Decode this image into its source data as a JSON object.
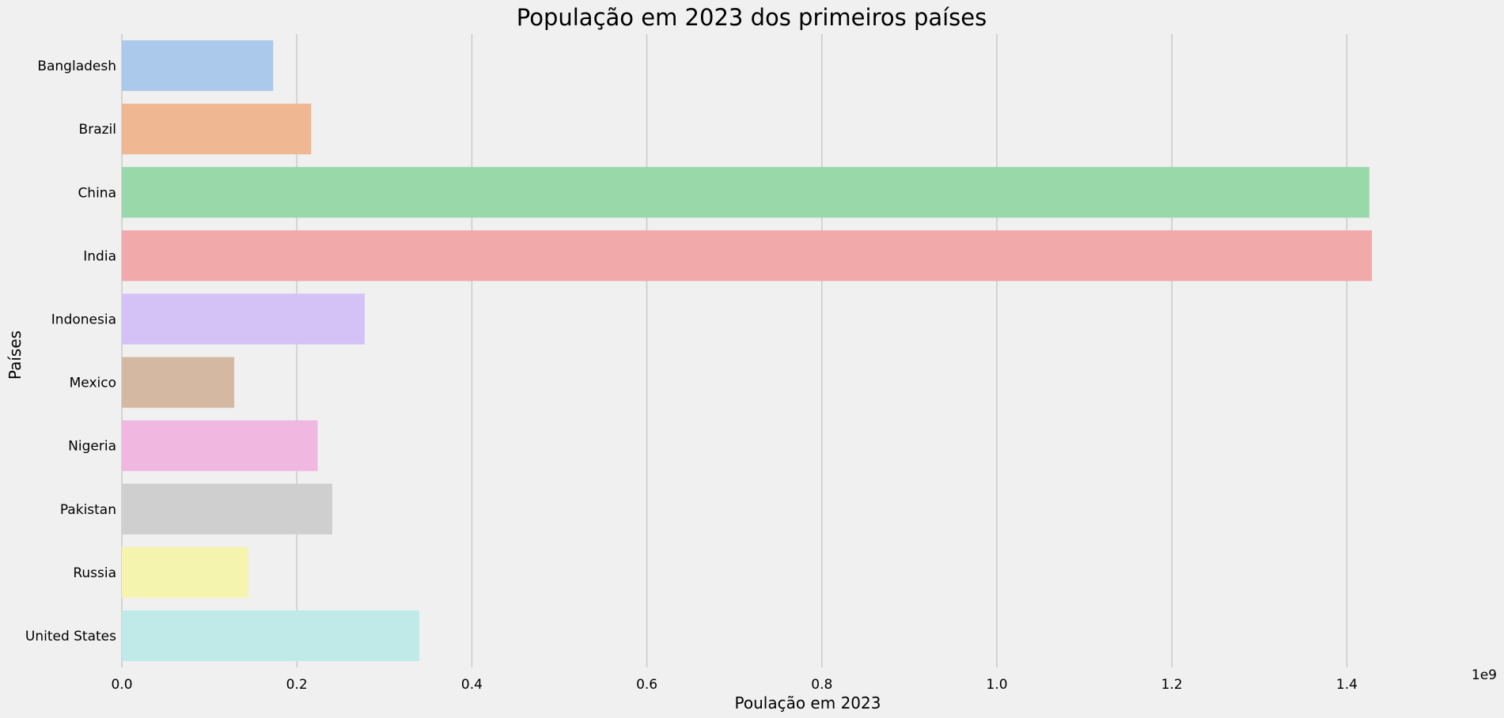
{
  "chart_data": {
    "type": "bar",
    "orientation": "horizontal",
    "title": "População em 2023 dos primeiros países",
    "xlabel": "Poulação em 2023",
    "ylabel": "Países",
    "x_offset_label": "1e9",
    "categories": [
      "Bangladesh",
      "Brazil",
      "China",
      "India",
      "Indonesia",
      "Mexico",
      "Nigeria",
      "Pakistan",
      "Russia",
      "United States"
    ],
    "values": [
      172954319,
      216422446,
      1425671352,
      1428627663,
      277534122,
      128455567,
      223804632,
      240485658,
      144444359,
      339996563
    ],
    "colors": [
      "#abc9ea",
      "#f0b892",
      "#98d8a9",
      "#f1a9a9",
      "#d4c2f6",
      "#d4b8a1",
      "#f0b7e1",
      "#cfcfcf",
      "#f4f4af",
      "#c0eae8"
    ],
    "xlim": [
      0,
      1500000000.0
    ],
    "xticks": [
      0,
      200000000,
      400000000,
      600000000,
      800000000,
      1000000000,
      1200000000,
      1400000000
    ],
    "xtick_labels": [
      "0.0",
      "0.2",
      "0.4",
      "0.6",
      "0.8",
      "1.0",
      "1.2",
      "1.4"
    ],
    "grid": "vertical",
    "background": "#f0f0f0",
    "grid_color": "#cbcbcb"
  }
}
